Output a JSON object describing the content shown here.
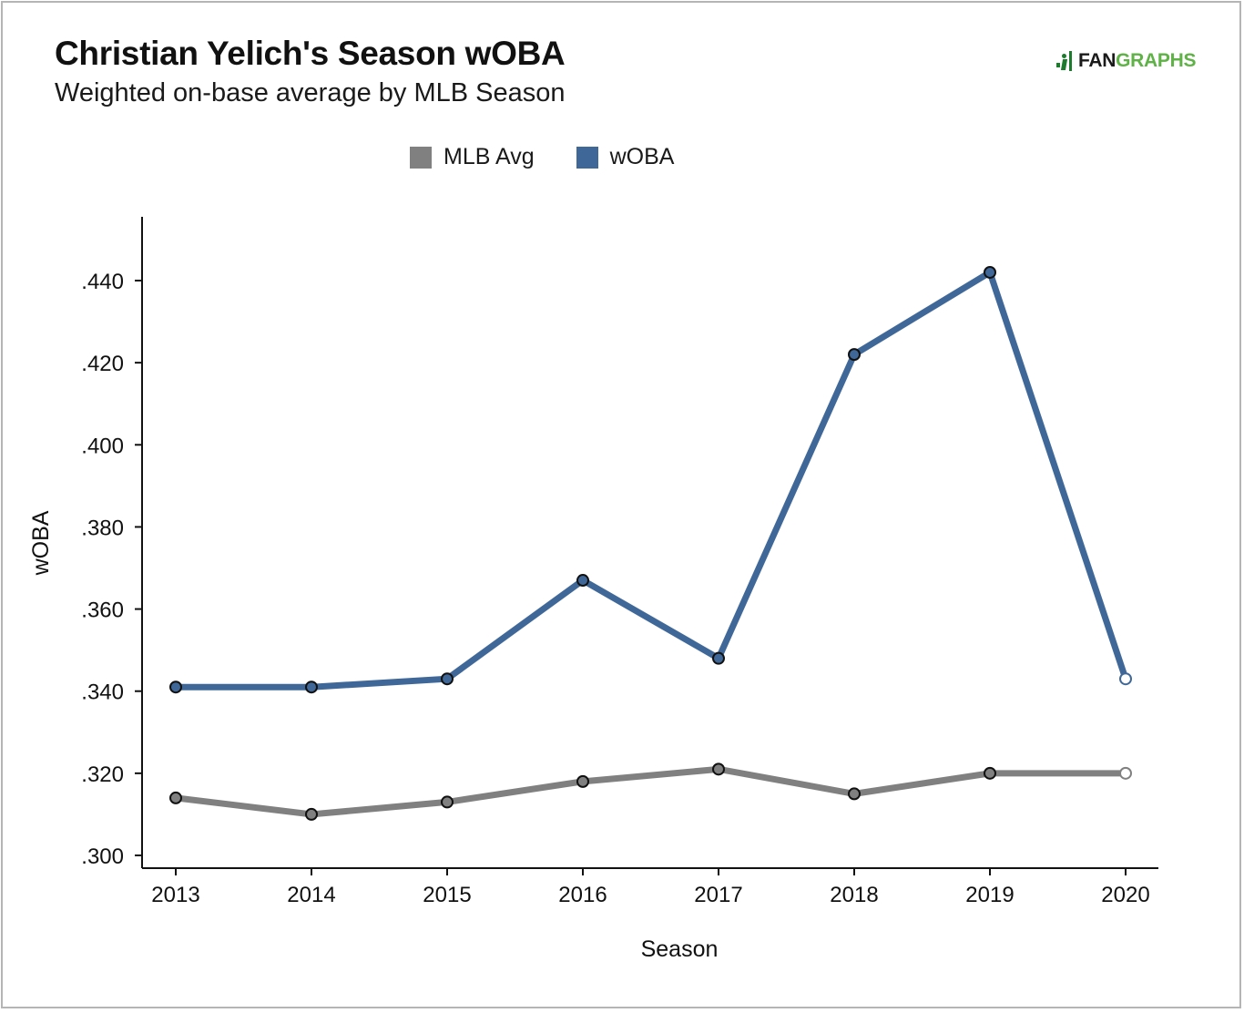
{
  "header": {
    "title": "Christian Yelich's Season wOBA",
    "subtitle": "Weighted on-base average by MLB Season"
  },
  "logo": {
    "part1": "FAN",
    "part2": "GRAPHS"
  },
  "chart_data": {
    "type": "line",
    "title": "Christian Yelich's Season wOBA",
    "subtitle": "Weighted on-base average by MLB Season",
    "xlabel": "Season",
    "ylabel": "wOBA",
    "categories": [
      "2013",
      "2014",
      "2015",
      "2016",
      "2017",
      "2018",
      "2019",
      "2020"
    ],
    "ylim": [
      0.297,
      0.456
    ],
    "yticks": [
      0.3,
      0.32,
      0.34,
      0.36,
      0.38,
      0.4,
      0.42,
      0.44
    ],
    "ytick_labels": [
      ".300",
      ".320",
      ".340",
      ".360",
      ".380",
      ".400",
      ".420",
      ".440"
    ],
    "grid": false,
    "legend": "top-center",
    "series": [
      {
        "name": "MLB Avg",
        "color": "#808080",
        "values": [
          0.314,
          0.31,
          0.313,
          0.318,
          0.321,
          0.315,
          0.32,
          0.32
        ],
        "last_point_open": true
      },
      {
        "name": "wOBA",
        "color": "#3f6898",
        "values": [
          0.341,
          0.341,
          0.343,
          0.367,
          0.348,
          0.422,
          0.442,
          0.343
        ],
        "last_point_open": true
      }
    ]
  }
}
